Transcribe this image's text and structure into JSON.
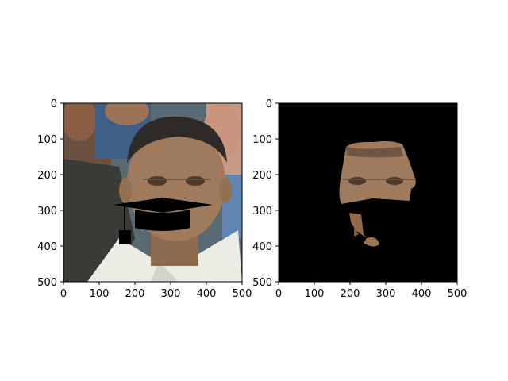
{
  "figure": {
    "panels": [
      {
        "name": "left",
        "image_desc": "cropped face photo with graduation-cap overlay",
        "x_ticks": [
          "0",
          "100",
          "200",
          "300",
          "400",
          "500"
        ],
        "y_ticks": [
          "0",
          "100",
          "200",
          "300",
          "400",
          "500"
        ]
      },
      {
        "name": "right",
        "image_desc": "segmented face on black background",
        "x_ticks": [
          "0",
          "100",
          "200",
          "300",
          "400",
          "500"
        ],
        "y_ticks": [
          "0",
          "100",
          "200",
          "300",
          "400",
          "500"
        ]
      }
    ],
    "colors": {
      "skin": "#a07a5c",
      "skin_dark": "#7e5b42",
      "hair": "#2e2a28",
      "shirt": "#ecece4",
      "jacket": "#3a3b38",
      "bg_blue": "#4b6b8c",
      "cap": "#000000",
      "mask_bg": "#000000"
    }
  }
}
